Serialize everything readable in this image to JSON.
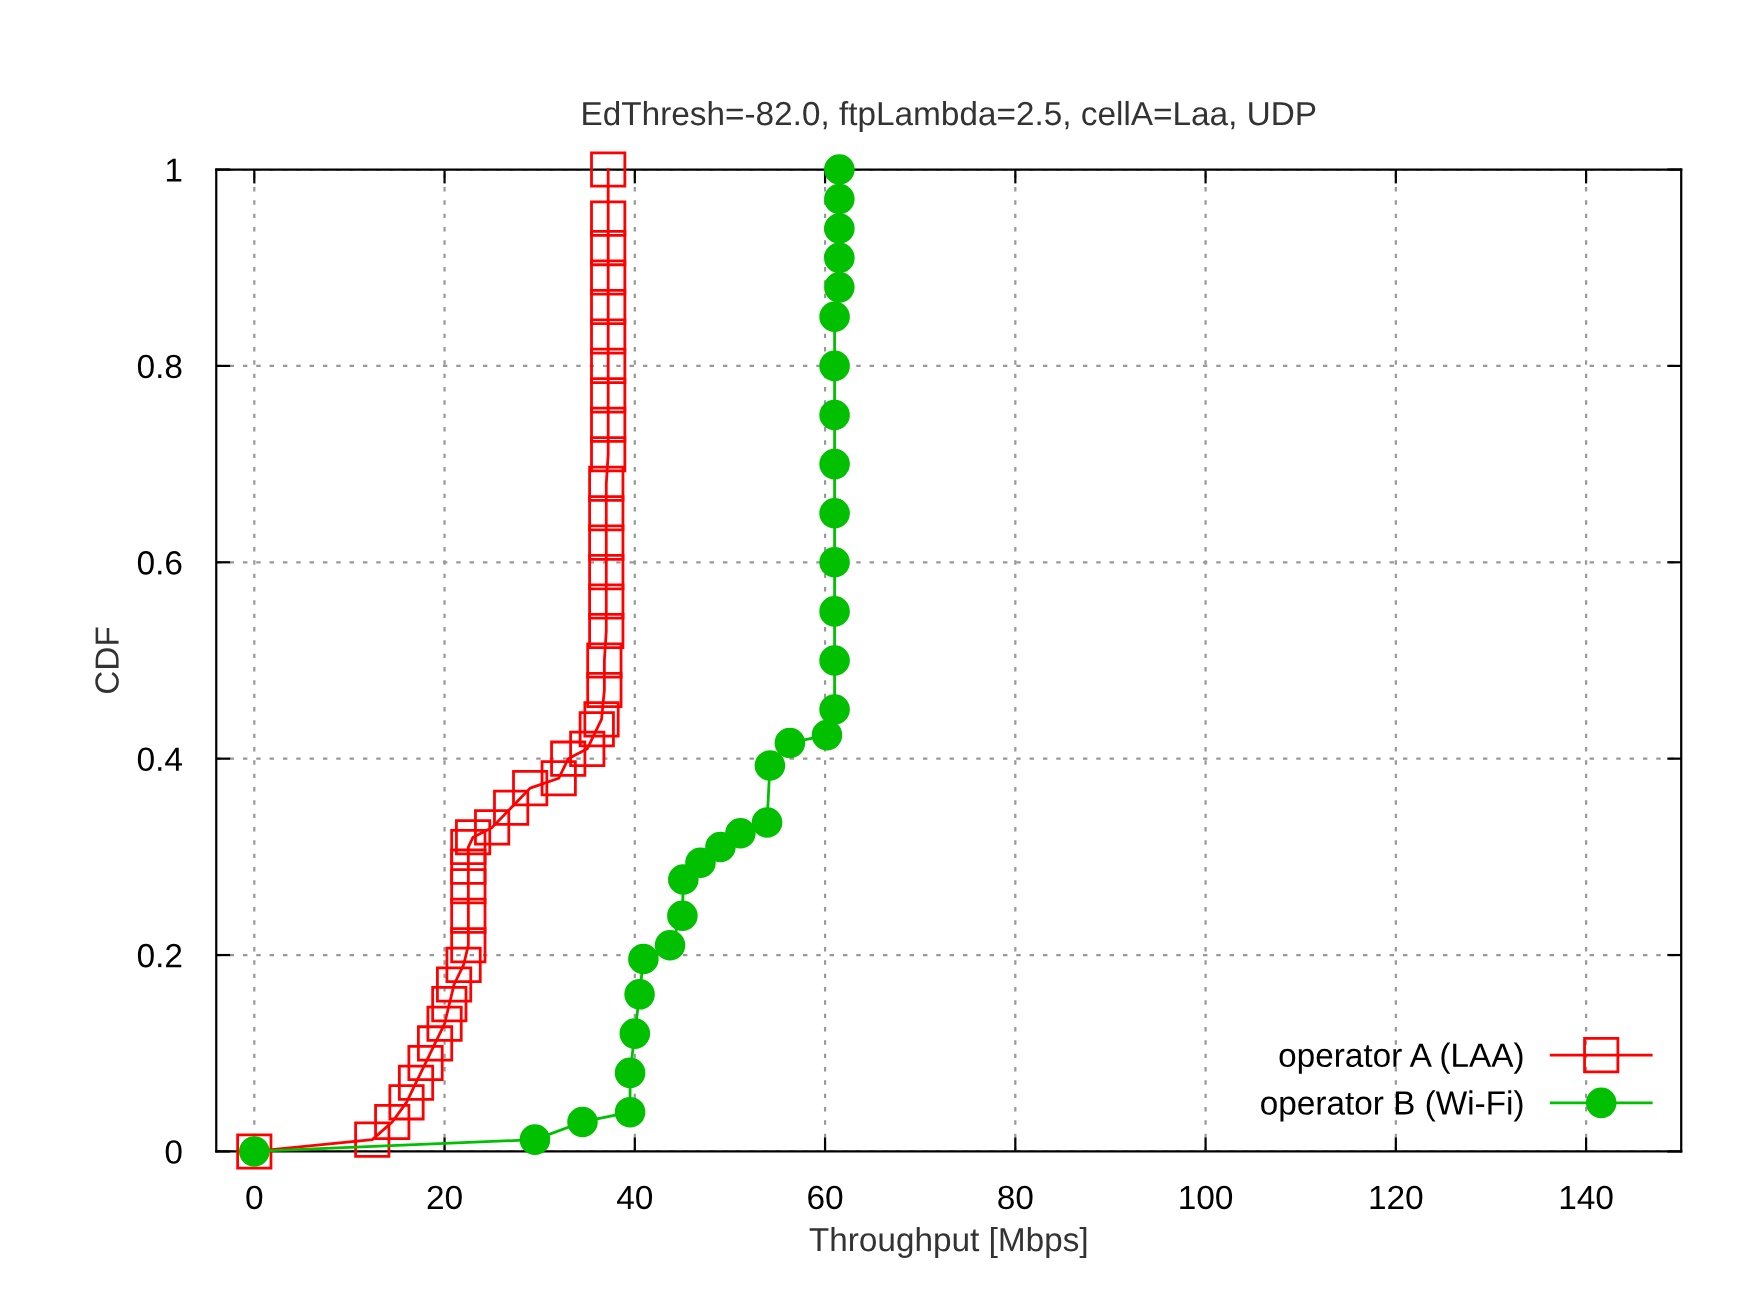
{
  "chart_data": {
    "type": "line",
    "title": "EdThresh=-82.0, ftpLambda=2.5, cellA=Laa, UDP",
    "xlabel": "Throughput [Mbps]",
    "ylabel": "CDF",
    "xlim": [
      -4,
      150
    ],
    "xticks": [
      0,
      20,
      40,
      60,
      80,
      100,
      120,
      140
    ],
    "ylim": [
      0,
      1
    ],
    "yticks": [
      0,
      0.2,
      0.4,
      0.6,
      0.8,
      1
    ],
    "grid": true,
    "legend": "bottom right",
    "series": [
      {
        "name": "operator A (LAA)",
        "color": "#ff0000",
        "marker": "square",
        "x": [
          0,
          12.4,
          14.5,
          16,
          17,
          18,
          19,
          20,
          20.5,
          21,
          22,
          22.5,
          22.5,
          22.5,
          22.5,
          22.5,
          23,
          25,
          27,
          29,
          32,
          33,
          35,
          36,
          36.5,
          36.8,
          36.8,
          37,
          37,
          37,
          37,
          37,
          37,
          37.2,
          37.2,
          37.2,
          37.2,
          37.2,
          37.2,
          37.2,
          37.2,
          37.2,
          37.2
        ],
        "values": [
          0,
          0.012,
          0.03,
          0.05,
          0.07,
          0.09,
          0.11,
          0.13,
          0.15,
          0.17,
          0.19,
          0.21,
          0.24,
          0.27,
          0.29,
          0.31,
          0.32,
          0.33,
          0.35,
          0.37,
          0.38,
          0.4,
          0.41,
          0.43,
          0.44,
          0.47,
          0.5,
          0.53,
          0.56,
          0.59,
          0.62,
          0.65,
          0.68,
          0.71,
          0.74,
          0.77,
          0.8,
          0.83,
          0.86,
          0.89,
          0.92,
          0.95,
          1
        ]
      },
      {
        "name": "operator B (Wi-Fi)",
        "color": "#00c000",
        "marker": "circle",
        "x": [
          0,
          29.5,
          34.5,
          39.5,
          39.5,
          40,
          40.5,
          40.9,
          43.7,
          45,
          45.1,
          46.9,
          49,
          51.1,
          53.9,
          54.2,
          56.3,
          60.2,
          61,
          61,
          61,
          61,
          61,
          61,
          61,
          61,
          61,
          61.5,
          61.5,
          61.5,
          61.5,
          61.5
        ],
        "values": [
          0,
          0.012,
          0.03,
          0.04,
          0.08,
          0.12,
          0.16,
          0.196,
          0.21,
          0.24,
          0.277,
          0.294,
          0.31,
          0.324,
          0.335,
          0.393,
          0.416,
          0.424,
          0.45,
          0.5,
          0.55,
          0.6,
          0.65,
          0.7,
          0.75,
          0.8,
          0.85,
          0.88,
          0.91,
          0.94,
          0.97,
          1
        ]
      }
    ]
  }
}
